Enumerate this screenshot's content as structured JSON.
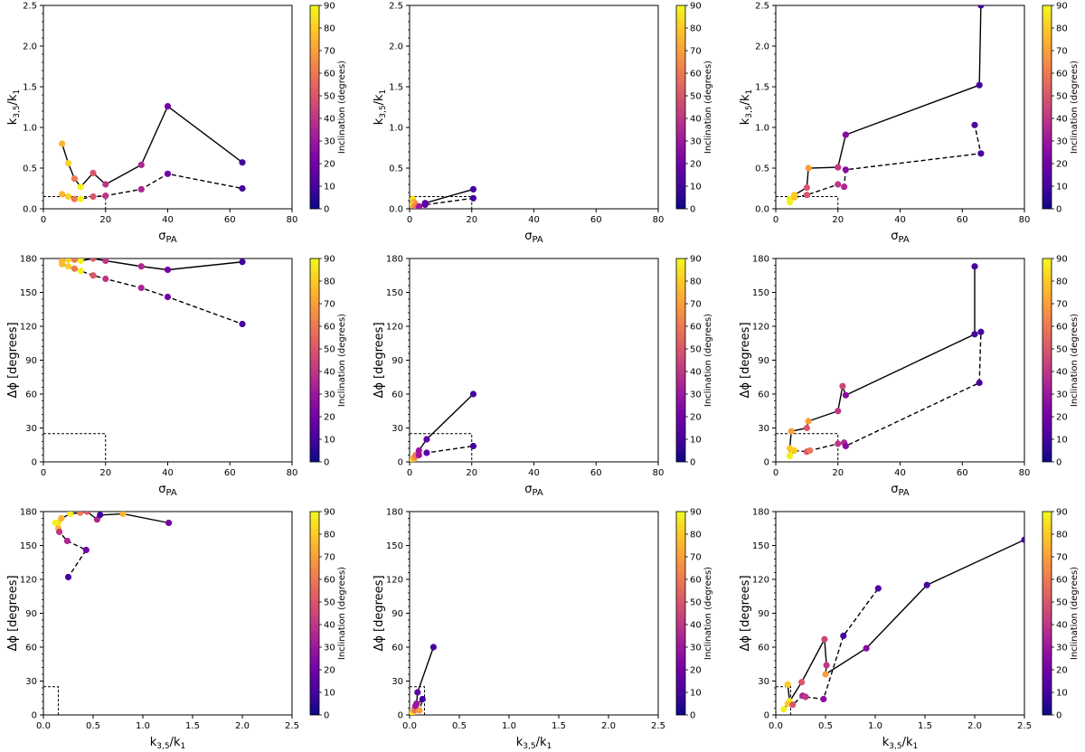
{
  "figure_title": "",
  "colorbar": {
    "label": "Inclination (degrees)",
    "min": 0,
    "max": 90,
    "ticks": [
      "0",
      "10",
      "20",
      "30",
      "40",
      "50",
      "60",
      "70",
      "80",
      "90"
    ],
    "stops": [
      "#0d0887",
      "#46039f",
      "#7201a8",
      "#9c179e",
      "#bd3786",
      "#d8576b",
      "#ed7953",
      "#fb9f3a",
      "#fdca26",
      "#f0f921"
    ]
  },
  "chart_data": [
    {
      "type": "line",
      "id": "k-vs-sigma-a",
      "xlabel": "σ_PA",
      "ylabel": "k3,5/k1",
      "xlim": [
        0,
        80
      ],
      "ylim": [
        0,
        2.5
      ],
      "xticks": [
        "0",
        "20",
        "40",
        "60",
        "80"
      ],
      "yticks": [
        "0.0",
        "0.5",
        "1.0",
        "1.5",
        "2.0",
        "2.5"
      ],
      "threshold": {
        "x": 20,
        "y": 0.15
      },
      "series": [
        {
          "name": "solid",
          "dash": false,
          "points": [
            [
              6,
              0.8,
              75
            ],
            [
              8,
              0.56,
              82
            ],
            [
              10,
              0.37,
              60
            ],
            [
              12,
              0.27,
              88
            ],
            [
              16,
              0.44,
              50
            ],
            [
              20,
              0.3,
              40
            ],
            [
              31.5,
              0.54,
              35
            ],
            [
              40,
              1.26,
              20
            ],
            [
              64,
              0.57,
              10
            ]
          ]
        },
        {
          "name": "dashed",
          "dash": true,
          "points": [
            [
              6,
              0.18,
              75
            ],
            [
              8,
              0.15,
              82
            ],
            [
              10,
              0.12,
              60
            ],
            [
              12,
              0.12,
              88
            ],
            [
              16,
              0.15,
              50
            ],
            [
              20,
              0.16,
              40
            ],
            [
              31.5,
              0.24,
              35
            ],
            [
              40,
              0.43,
              20
            ],
            [
              64,
              0.25,
              10
            ]
          ]
        }
      ]
    },
    {
      "type": "line",
      "id": "k-vs-sigma-b",
      "xlabel": "σ_PA",
      "ylabel": "k3,5/k1",
      "xlim": [
        0,
        80
      ],
      "ylim": [
        0,
        2.5
      ],
      "xticks": [
        "0",
        "20",
        "40",
        "60",
        "80"
      ],
      "yticks": [
        "0.0",
        "0.5",
        "1.0",
        "1.5",
        "2.0",
        "2.5"
      ],
      "threshold": {
        "x": 20,
        "y": 0.15
      },
      "series": [
        {
          "name": "solid",
          "dash": false,
          "points": [
            [
              1,
              0.12,
              85
            ],
            [
              1.5,
              0.08,
              70
            ],
            [
              2,
              0.05,
              60
            ],
            [
              3,
              0.03,
              30
            ],
            [
              5,
              0.07,
              15
            ],
            [
              20.5,
              0.24,
              10
            ]
          ]
        },
        {
          "name": "dashed",
          "dash": true,
          "points": [
            [
              1,
              0.05,
              85
            ],
            [
              1.5,
              0.04,
              70
            ],
            [
              2,
              0.03,
              60
            ],
            [
              3,
              0.02,
              30
            ],
            [
              5,
              0.05,
              15
            ],
            [
              20.5,
              0.13,
              10
            ]
          ]
        }
      ]
    },
    {
      "type": "line",
      "id": "k-vs-sigma-c",
      "xlabel": "σ_PA",
      "ylabel": "k3,5/k1",
      "xlim": [
        0,
        80
      ],
      "ylim": [
        0,
        2.5
      ],
      "xticks": [
        "0",
        "20",
        "40",
        "60",
        "80"
      ],
      "yticks": [
        "0.0",
        "0.5",
        "1.0",
        "1.5",
        "2.0",
        "2.5"
      ],
      "threshold": {
        "x": 20,
        "y": 0.15
      },
      "series": [
        {
          "name": "solid",
          "dash": false,
          "points": [
            [
              4.5,
              0.12,
              88
            ],
            [
              6,
              0.17,
              80
            ],
            [
              10,
              0.26,
              50
            ],
            [
              10.5,
              0.5,
              70
            ],
            [
              20,
              0.51,
              40
            ],
            [
              22.5,
              0.91,
              25
            ],
            [
              65.5,
              1.52,
              10
            ],
            [
              66,
              2.5,
              10
            ]
          ]
        },
        {
          "name": "dashed",
          "dash": true,
          "points": [
            [
              4.5,
              0.08,
              88
            ],
            [
              6,
              0.14,
              80
            ],
            [
              10,
              0.17,
              50
            ],
            [
              20,
              0.3,
              40
            ],
            [
              22,
              0.27,
              35
            ],
            [
              22.5,
              0.48,
              25
            ],
            [
              66,
              0.68,
              10
            ],
            [
              64,
              1.03,
              12
            ]
          ]
        }
      ]
    },
    {
      "type": "line",
      "id": "dphi-vs-sigma-a",
      "xlabel": "σ_PA",
      "ylabel": "Δϕ [degrees]",
      "xlim": [
        0,
        80
      ],
      "ylim": [
        0,
        180
      ],
      "xticks": [
        "0",
        "20",
        "40",
        "60",
        "80"
      ],
      "yticks": [
        "0",
        "30",
        "60",
        "90",
        "120",
        "150",
        "180"
      ],
      "threshold": {
        "x": 20,
        "y": 25
      },
      "series": [
        {
          "name": "solid",
          "dash": false,
          "points": [
            [
              6,
              178,
              75
            ],
            [
              8,
              179,
              82
            ],
            [
              10,
              179,
              60
            ],
            [
              12,
              178,
              88
            ],
            [
              16,
              180,
              50
            ],
            [
              20,
              178,
              40
            ],
            [
              31.5,
              173,
              35
            ],
            [
              40,
              170,
              20
            ],
            [
              64,
              177,
              10
            ]
          ]
        },
        {
          "name": "dashed",
          "dash": true,
          "points": [
            [
              6,
              175,
              75
            ],
            [
              8,
              173,
              82
            ],
            [
              10,
              171,
              60
            ],
            [
              12,
              169,
              88
            ],
            [
              16,
              165,
              50
            ],
            [
              20,
              162,
              40
            ],
            [
              31.5,
              154,
              35
            ],
            [
              40,
              146,
              20
            ],
            [
              64,
              122,
              10
            ]
          ]
        }
      ]
    },
    {
      "type": "line",
      "id": "dphi-vs-sigma-b",
      "xlabel": "σ_PA",
      "ylabel": "Δϕ [degrees]",
      "xlim": [
        0,
        80
      ],
      "ylim": [
        0,
        180
      ],
      "xticks": [
        "0",
        "20",
        "40",
        "60",
        "80"
      ],
      "yticks": [
        "0",
        "30",
        "60",
        "90",
        "120",
        "150",
        "180"
      ],
      "threshold": {
        "x": 20,
        "y": 25
      },
      "series": [
        {
          "name": "solid",
          "dash": false,
          "points": [
            [
              1,
              2,
              85
            ],
            [
              1.5,
              4,
              70
            ],
            [
              2,
              6,
              60
            ],
            [
              3,
              10,
              30
            ],
            [
              5.5,
              20,
              15
            ],
            [
              20.5,
              60,
              10
            ]
          ]
        },
        {
          "name": "dashed",
          "dash": true,
          "points": [
            [
              1,
              1,
              85
            ],
            [
              1.5,
              3,
              70
            ],
            [
              2,
              5,
              60
            ],
            [
              3,
              6,
              30
            ],
            [
              5.5,
              8,
              15
            ],
            [
              20.5,
              14,
              10
            ]
          ]
        }
      ]
    },
    {
      "type": "line",
      "id": "dphi-vs-sigma-c",
      "xlabel": "σ_PA",
      "ylabel": "Δϕ [degrees]",
      "xlim": [
        0,
        80
      ],
      "ylim": [
        0,
        180
      ],
      "xticks": [
        "0",
        "20",
        "40",
        "60",
        "80"
      ],
      "yticks": [
        "0",
        "30",
        "60",
        "90",
        "120",
        "150",
        "180"
      ],
      "threshold": {
        "x": 20,
        "y": 25
      },
      "series": [
        {
          "name": "solid",
          "dash": false,
          "points": [
            [
              4.5,
              6,
              88
            ],
            [
              4.5,
              12,
              80
            ],
            [
              5,
              27,
              70
            ],
            [
              10,
              30,
              50
            ],
            [
              10.5,
              36,
              70
            ],
            [
              20,
              45,
              40
            ],
            [
              21.5,
              67,
              45
            ],
            [
              22.5,
              59,
              25
            ],
            [
              64,
              113,
              10
            ],
            [
              64,
              173,
              10
            ]
          ]
        },
        {
          "name": "dashed",
          "dash": true,
          "points": [
            [
              4.5,
              5,
              88
            ],
            [
              6,
              10,
              80
            ],
            [
              10,
              9,
              50
            ],
            [
              11,
              10,
              60
            ],
            [
              20,
              16,
              40
            ],
            [
              22,
              17,
              35
            ],
            [
              22.5,
              14,
              25
            ],
            [
              65.5,
              70,
              10
            ],
            [
              66,
              115,
              10
            ]
          ]
        }
      ]
    },
    {
      "type": "line",
      "id": "dphi-vs-k-a",
      "xlabel": "k3,5/k1",
      "ylabel": "Δϕ [degrees]",
      "xlim": [
        0,
        2.5
      ],
      "ylim": [
        0,
        180
      ],
      "xticks": [
        "0.0",
        "0.5",
        "1.0",
        "1.5",
        "2.0",
        "2.5"
      ],
      "yticks": [
        "0",
        "30",
        "60",
        "90",
        "120",
        "150",
        "180"
      ],
      "threshold": {
        "x": 0.15,
        "y": 25
      },
      "series": [
        {
          "name": "solid",
          "dash": false,
          "points": [
            [
              0.15,
              170,
              85
            ],
            [
              0.18,
              174,
              75
            ],
            [
              0.27,
              178,
              88
            ],
            [
              0.37,
              179,
              60
            ],
            [
              0.44,
              180,
              50
            ],
            [
              0.54,
              173,
              35
            ],
            [
              0.57,
              177,
              10
            ],
            [
              0.8,
              178,
              75
            ],
            [
              1.26,
              170,
              20
            ]
          ]
        },
        {
          "name": "dashed",
          "dash": true,
          "points": [
            [
              0.12,
              170,
              88
            ],
            [
              0.15,
              165,
              75
            ],
            [
              0.16,
              162,
              40
            ],
            [
              0.24,
              154,
              35
            ],
            [
              0.43,
              146,
              20
            ],
            [
              0.25,
              122,
              10
            ]
          ]
        }
      ]
    },
    {
      "type": "line",
      "id": "dphi-vs-k-b",
      "xlabel": "k3,5/k1",
      "ylabel": "Δϕ [degrees]",
      "xlim": [
        0,
        2.5
      ],
      "ylim": [
        0,
        180
      ],
      "xticks": [
        "0.0",
        "0.5",
        "1.0",
        "1.5",
        "2.0",
        "2.5"
      ],
      "yticks": [
        "0",
        "30",
        "60",
        "90",
        "120",
        "150",
        "180"
      ],
      "threshold": {
        "x": 0.15,
        "y": 25
      },
      "series": [
        {
          "name": "solid",
          "dash": false,
          "points": [
            [
              0.03,
              2,
              85
            ],
            [
              0.05,
              6,
              60
            ],
            [
              0.07,
              10,
              30
            ],
            [
              0.08,
              20,
              15
            ],
            [
              0.24,
              60,
              10
            ]
          ]
        },
        {
          "name": "dashed",
          "dash": true,
          "points": [
            [
              0.02,
              1,
              85
            ],
            [
              0.05,
              4,
              60
            ],
            [
              0.06,
              8,
              30
            ],
            [
              0.13,
              14,
              10
            ],
            [
              0.1,
              4,
              70
            ]
          ]
        }
      ]
    },
    {
      "type": "line",
      "id": "dphi-vs-k-c",
      "xlabel": "k3,5/k1",
      "ylabel": "Δϕ [degrees]",
      "xlim": [
        0,
        2.5
      ],
      "ylim": [
        0,
        180
      ],
      "xticks": [
        "0.0",
        "0.5",
        "1.0",
        "1.5",
        "2.0",
        "2.5"
      ],
      "yticks": [
        "0",
        "30",
        "60",
        "90",
        "120",
        "150",
        "180"
      ],
      "threshold": {
        "x": 0.15,
        "y": 25
      },
      "series": [
        {
          "name": "solid",
          "dash": false,
          "points": [
            [
              0.12,
              27,
              80
            ],
            [
              0.14,
              12,
              88
            ],
            [
              0.26,
              29,
              50
            ],
            [
              0.49,
              67,
              45
            ],
            [
              0.51,
              44,
              40
            ],
            [
              0.5,
              36,
              70
            ],
            [
              0.91,
              59,
              25
            ],
            [
              1.52,
              115,
              10
            ],
            [
              2.5,
              155,
              10
            ]
          ]
        },
        {
          "name": "dashed",
          "dash": true,
          "points": [
            [
              0.08,
              5,
              88
            ],
            [
              0.12,
              10,
              80
            ],
            [
              0.17,
              9,
              50
            ],
            [
              0.27,
              17,
              35
            ],
            [
              0.3,
              16,
              40
            ],
            [
              0.48,
              14,
              25
            ],
            [
              0.68,
              70,
              10
            ],
            [
              1.03,
              112,
              12
            ]
          ]
        }
      ]
    }
  ]
}
